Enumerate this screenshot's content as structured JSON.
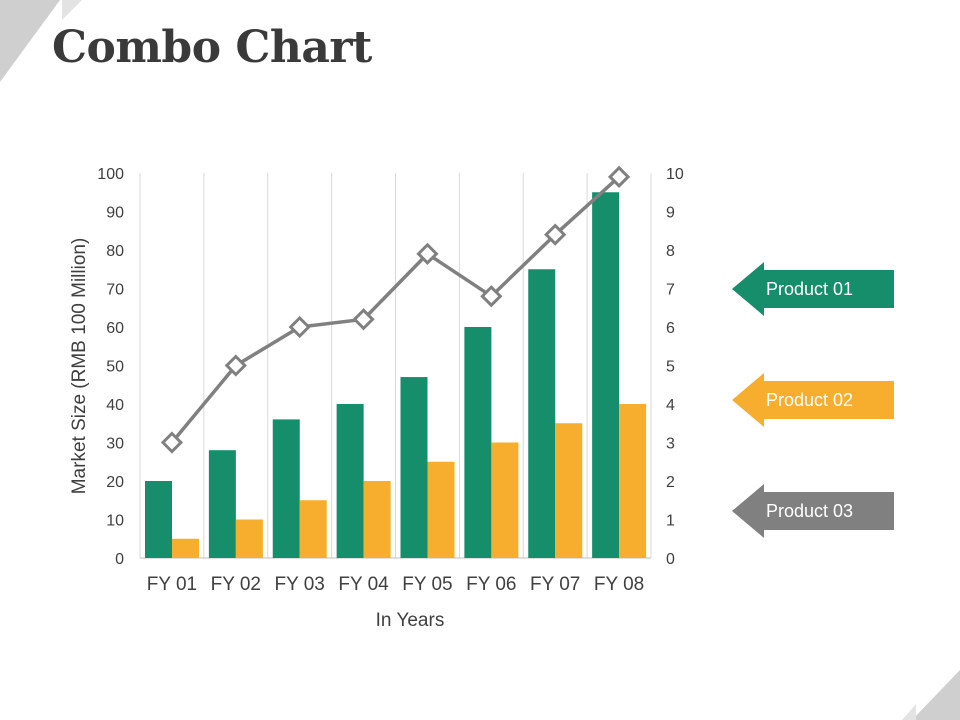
{
  "slide": {
    "title": "Combo Chart"
  },
  "colors": {
    "green": "#168e6b",
    "orange": "#f7ad2e",
    "gray": "#808080",
    "grid": "#d9d9d9",
    "corner": "#cfcfcf"
  },
  "chart_data": {
    "type": "bar",
    "categories": [
      "FY 01",
      "FY 02",
      "FY 03",
      "FY 04",
      "FY 05",
      "FY 06",
      "FY 07",
      "FY 08"
    ],
    "series": [
      {
        "name": "Product 01",
        "type": "bar",
        "axis": "left",
        "color": "#168e6b",
        "values": [
          20,
          28,
          36,
          40,
          47,
          60,
          75,
          95
        ]
      },
      {
        "name": "Product 02",
        "type": "bar",
        "axis": "left",
        "color": "#f7ad2e",
        "values": [
          5,
          10,
          15,
          20,
          25,
          30,
          35,
          40
        ]
      },
      {
        "name": "Product 03",
        "type": "line",
        "axis": "right",
        "color": "#808080",
        "marker": "diamond",
        "values": [
          3,
          5,
          6,
          6.2,
          7.9,
          6.8,
          8.4,
          9.9
        ]
      }
    ],
    "xlabel": "In Years",
    "ylabel": "Market Size (RMB 100 Million)",
    "ylim": [
      0,
      100
    ],
    "y2lim": [
      0,
      10
    ],
    "yticks": [
      "0",
      "10",
      "20",
      "30",
      "40",
      "50",
      "60",
      "70",
      "80",
      "90",
      "100"
    ],
    "y2ticks": [
      "0",
      "1",
      "2",
      "3",
      "4",
      "5",
      "6",
      "7",
      "8",
      "9",
      "10"
    ],
    "grid": "vertical",
    "legend": "right"
  }
}
